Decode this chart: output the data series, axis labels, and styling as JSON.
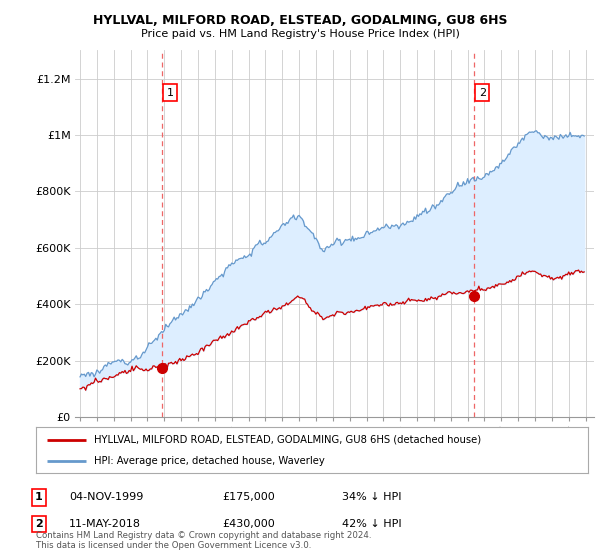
{
  "title1": "HYLLVAL, MILFORD ROAD, ELSTEAD, GODALMING, GU8 6HS",
  "title2": "Price paid vs. HM Land Registry's House Price Index (HPI)",
  "ylabel_ticks": [
    "£0",
    "£200K",
    "£400K",
    "£600K",
    "£800K",
    "£1M",
    "£1.2M"
  ],
  "ytick_values": [
    0,
    200000,
    400000,
    600000,
    800000,
    1000000,
    1200000
  ],
  "ylim": [
    0,
    1300000
  ],
  "xlim_start": 1994.7,
  "xlim_end": 2025.5,
  "purchase1_x": 1999.84,
  "purchase1_y": 175000,
  "purchase1_label": "1",
  "purchase2_x": 2018.36,
  "purchase2_y": 430000,
  "purchase2_label": "2",
  "red_line_color": "#cc0000",
  "blue_line_color": "#6699cc",
  "fill_color": "#ddeeff",
  "dashed_line_color": "#ee6666",
  "legend_line1": "HYLLVAL, MILFORD ROAD, ELSTEAD, GODALMING, GU8 6HS (detached house)",
  "legend_line2": "HPI: Average price, detached house, Waverley",
  "annotation1_date": "04-NOV-1999",
  "annotation1_price": "£175,000",
  "annotation1_hpi": "34% ↓ HPI",
  "annotation2_date": "11-MAY-2018",
  "annotation2_price": "£430,000",
  "annotation2_hpi": "42% ↓ HPI",
  "footer": "Contains HM Land Registry data © Crown copyright and database right 2024.\nThis data is licensed under the Open Government Licence v3.0.",
  "background_color": "#ffffff",
  "grid_color": "#cccccc"
}
